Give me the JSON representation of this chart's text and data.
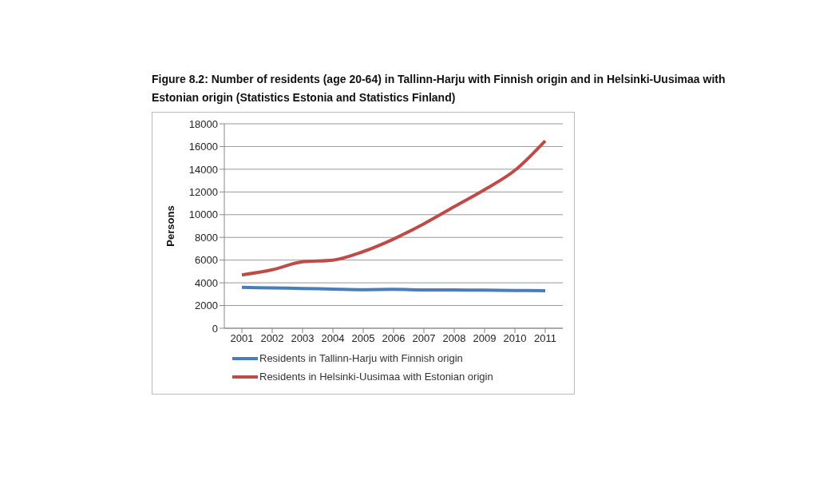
{
  "chart_data": {
    "type": "line",
    "title": "Figure 8.2: Number of residents (age 20-64) in Tallinn-Harju with Finnish origin and in Helsinki-Uusimaa with Estonian origin (Statistics Estonia and Statistics Finland)",
    "ylabel": "Persons",
    "categories": [
      "2001",
      "2002",
      "2003",
      "2004",
      "2005",
      "2006",
      "2007",
      "2008",
      "2009",
      "2010",
      "2011"
    ],
    "series": [
      {
        "name": "Residents in Tallinn-Harju with Finnish origin",
        "color": "#4a7ebb",
        "values": [
          3600,
          3550,
          3500,
          3450,
          3400,
          3420,
          3380,
          3370,
          3350,
          3330,
          3300
        ]
      },
      {
        "name": "Residents in Helsinki-Uusimaa with Estonian origin",
        "color": "#be4b48",
        "values": [
          4700,
          5150,
          5850,
          6000,
          6750,
          7850,
          9200,
          10700,
          12200,
          13900,
          16500
        ]
      }
    ],
    "ylim": [
      0,
      18000
    ],
    "yticks": [
      0,
      2000,
      4000,
      6000,
      8000,
      10000,
      12000,
      14000,
      16000,
      18000
    ],
    "grid": "y",
    "legend": "bottom",
    "marker": "none",
    "line_style": "solid"
  }
}
